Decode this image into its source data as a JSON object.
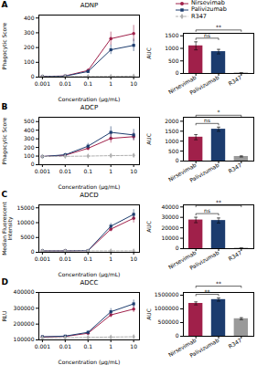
{
  "chart_data": [
    {
      "type": "line",
      "panel_label": "A",
      "title": "ADNP",
      "xlabel": "Concentration (μg/mL)",
      "ylabel": "Phagocytic Score",
      "log": "x",
      "x": [
        0.001,
        0.01,
        0.1,
        1,
        10
      ],
      "xlim": [
        0.0007,
        18
      ],
      "xticks": [
        0.001,
        0.01,
        0.1,
        1,
        10
      ],
      "ylim": [
        0,
        420
      ],
      "yticks": [
        0,
        100,
        200,
        300,
        400
      ],
      "legend": "upper right",
      "series": [
        {
          "name": "Nirsevimab",
          "color": "#A0204A",
          "marker": "circle",
          "line_style": "solid",
          "values": [
            5,
            8,
            45,
            260,
            295
          ],
          "errors": [
            2,
            3,
            12,
            45,
            55
          ]
        },
        {
          "name": "Palivizumab",
          "color": "#1C3C6E",
          "marker": "square",
          "line_style": "solid",
          "values": [
            4,
            7,
            38,
            185,
            215
          ],
          "errors": [
            2,
            3,
            9,
            32,
            42
          ]
        },
        {
          "name": "R347",
          "color": "#B0B0B0",
          "marker": "diamond",
          "line_style": "dashed",
          "values": [
            3,
            3,
            4,
            5,
            7
          ],
          "errors": [
            1,
            1,
            1,
            1,
            2
          ]
        }
      ]
    },
    {
      "type": "bar",
      "ylabel": "AUC",
      "categories": [
        "Nirsevimab",
        "Palivizumab",
        "R347"
      ],
      "values": [
        1100,
        870,
        18
      ],
      "errors": [
        160,
        90,
        8
      ],
      "colors": [
        "#A0204A",
        "#1C3C6E",
        "#9A9A9A"
      ],
      "ylim": [
        0,
        1600
      ],
      "yticks": [
        0,
        500,
        1000,
        1500
      ],
      "annotations": [
        {
          "text": "ns",
          "from": "Nirsevimab",
          "to": "Palivizumab"
        },
        {
          "text": "**",
          "from": "Nirsevimab",
          "to": "R347"
        }
      ]
    },
    {
      "type": "line",
      "panel_label": "B",
      "title": "ADCP",
      "xlabel": "Concentration (μg/mL)",
      "ylabel": "Phagocytic Score",
      "log": "x",
      "x": [
        0.001,
        0.01,
        0.1,
        1,
        10
      ],
      "xlim": [
        0.0007,
        18
      ],
      "xticks": [
        0.001,
        0.01,
        0.1,
        1,
        10
      ],
      "ylim": [
        0,
        550
      ],
      "yticks": [
        0,
        100,
        200,
        300,
        400,
        500
      ],
      "series": [
        {
          "name": "Nirsevimab",
          "color": "#A0204A",
          "marker": "circle",
          "line_style": "solid",
          "values": [
            95,
            110,
            190,
            305,
            325
          ],
          "errors": [
            12,
            18,
            28,
            55,
            45
          ]
        },
        {
          "name": "Palivizumab",
          "color": "#1C3C6E",
          "marker": "square",
          "line_style": "solid",
          "values": [
            95,
            115,
            215,
            375,
            345
          ],
          "errors": [
            12,
            18,
            32,
            65,
            65
          ]
        },
        {
          "name": "R347",
          "color": "#B0B0B0",
          "marker": "diamond",
          "line_style": "dashed",
          "values": [
            95,
            97,
            100,
            105,
            108
          ],
          "errors": [
            5,
            5,
            5,
            5,
            5
          ]
        }
      ]
    },
    {
      "type": "bar",
      "ylabel": "AUC",
      "categories": [
        "Nirsevimab",
        "Palivizumab",
        "R347"
      ],
      "values": [
        1200,
        1600,
        230
      ],
      "errors": [
        130,
        105,
        28
      ],
      "colors": [
        "#A0204A",
        "#1C3C6E",
        "#9A9A9A"
      ],
      "ylim": [
        0,
        2200
      ],
      "yticks": [
        0,
        500,
        1000,
        1500,
        2000
      ],
      "annotations": [
        {
          "text": "ns",
          "from": "Nirsevimab",
          "to": "Palivizumab"
        },
        {
          "text": "*",
          "from": "Nirsevimab",
          "to": "R347"
        }
      ]
    },
    {
      "type": "line",
      "panel_label": "C",
      "title": "ADCD",
      "xlabel": "Concentration (μg/mL)",
      "ylabel": "Median Fluorescent\nIntensity",
      "log": "x",
      "x": [
        0.001,
        0.01,
        0.1,
        1,
        10
      ],
      "xlim": [
        0.0007,
        18
      ],
      "xticks": [
        0.001,
        0.01,
        0.1,
        1,
        10
      ],
      "ylim": [
        0,
        16000
      ],
      "yticks": [
        0,
        5000,
        10000,
        15000
      ],
      "series": [
        {
          "name": "Nirsevimab",
          "color": "#A0204A",
          "marker": "circle",
          "line_style": "solid",
          "values": [
            480,
            490,
            560,
            7800,
            11500
          ],
          "errors": [
            55,
            65,
            90,
            900,
            1600
          ]
        },
        {
          "name": "Palivizumab",
          "color": "#1C3C6E",
          "marker": "square",
          "line_style": "solid",
          "values": [
            480,
            490,
            570,
            8800,
            12800
          ],
          "errors": [
            55,
            65,
            90,
            950,
            1600
          ]
        },
        {
          "name": "R347",
          "color": "#B0B0B0",
          "marker": "diamond",
          "line_style": "dashed",
          "values": [
            470,
            470,
            475,
            480,
            485
          ],
          "errors": [
            30,
            30,
            30,
            30,
            30
          ]
        }
      ]
    },
    {
      "type": "bar",
      "ylabel": "AUC",
      "categories": [
        "Nirsevimab",
        "Palivizumab",
        "R347"
      ],
      "values": [
        27500,
        27000,
        450
      ],
      "errors": [
        2600,
        2400,
        180
      ],
      "colors": [
        "#A0204A",
        "#1C3C6E",
        "#9A9A9A"
      ],
      "ylim": [
        0,
        42000
      ],
      "yticks": [
        0,
        10000,
        20000,
        30000,
        40000
      ],
      "annotations": [
        {
          "text": "ns",
          "from": "Nirsevimab",
          "to": "Palivizumab"
        },
        {
          "text": "**",
          "from": "Nirsevimab",
          "to": "R347"
        }
      ]
    },
    {
      "type": "line",
      "panel_label": "D",
      "title": "ADCC",
      "xlabel": "Concentration (μg/mL)",
      "ylabel": "RLU",
      "log": "x",
      "x": [
        0.001,
        0.01,
        0.1,
        1,
        10
      ],
      "xlim": [
        0.0007,
        18
      ],
      "xticks": [
        0.001,
        0.01,
        0.1,
        1,
        10
      ],
      "ylim": [
        100000,
        400000
      ],
      "yticks": [
        100000,
        200000,
        300000,
        400000
      ],
      "series": [
        {
          "name": "Nirsevimab",
          "color": "#A0204A",
          "marker": "circle",
          "line_style": "solid",
          "values": [
            118000,
            122000,
            142000,
            258000,
            295000
          ],
          "errors": [
            5000,
            5000,
            8000,
            18000,
            22000
          ]
        },
        {
          "name": "Palivizumab",
          "color": "#1C3C6E",
          "marker": "square",
          "line_style": "solid",
          "values": [
            120000,
            124000,
            148000,
            278000,
            328000
          ],
          "errors": [
            5000,
            5000,
            9000,
            20000,
            24000
          ]
        },
        {
          "name": "R347",
          "color": "#B0B0B0",
          "marker": "diamond",
          "line_style": "dashed",
          "values": [
            113000,
            114000,
            116000,
            118000,
            120000
          ],
          "errors": [
            3000,
            3000,
            3000,
            3000,
            3000
          ]
        }
      ]
    },
    {
      "type": "bar",
      "ylabel": "AUC",
      "categories": [
        "Nirsevimab",
        "Palivizumab",
        "R347"
      ],
      "values": [
        1200000,
        1340000,
        640000
      ],
      "errors": [
        55000,
        58000,
        38000
      ],
      "colors": [
        "#A0204A",
        "#1C3C6E",
        "#9A9A9A"
      ],
      "ylim": [
        0,
        1600000
      ],
      "yticks": [
        0,
        500000,
        1000000,
        1500000
      ],
      "annotations": [
        {
          "text": "**",
          "from": "Nirsevimab",
          "to": "Palivizumab"
        },
        {
          "text": "**",
          "from": "Nirsevimab",
          "to": "R347"
        }
      ]
    }
  ]
}
